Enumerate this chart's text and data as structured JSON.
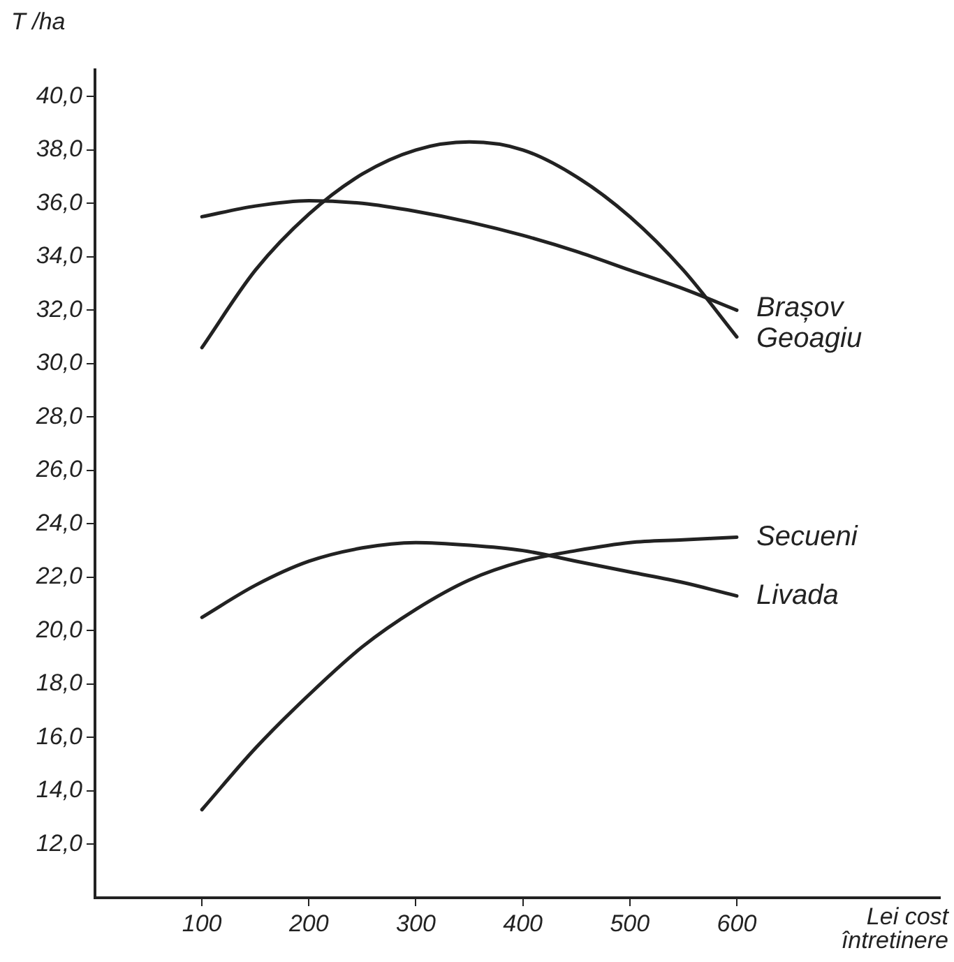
{
  "chart_data": {
    "type": "line",
    "xlabel": "Lei cost întretinere",
    "ylabel": "T /ha",
    "x": [
      100,
      150,
      200,
      250,
      300,
      350,
      400,
      450,
      500,
      550,
      600
    ],
    "series": [
      {
        "name": "Brașov",
        "color": "#222222",
        "values": [
          35.5,
          35.9,
          36.1,
          36.0,
          35.7,
          35.3,
          34.8,
          34.2,
          33.5,
          32.8,
          32.0
        ]
      },
      {
        "name": "Geoagiu",
        "color": "#222222",
        "values": [
          30.6,
          33.5,
          35.6,
          37.1,
          38.0,
          38.3,
          38.0,
          37.0,
          35.5,
          33.5,
          31.0
        ]
      },
      {
        "name": "Secueni",
        "color": "#222222",
        "values": [
          13.3,
          15.6,
          17.6,
          19.4,
          20.8,
          21.9,
          22.6,
          23.0,
          23.3,
          23.4,
          23.5
        ]
      },
      {
        "name": "Livada",
        "color": "#222222",
        "values": [
          20.5,
          21.7,
          22.6,
          23.1,
          23.3,
          23.2,
          23.0,
          22.6,
          22.2,
          21.8,
          21.3
        ]
      }
    ],
    "xlim": [
      0,
      790
    ],
    "xticks": [
      100,
      200,
      300,
      400,
      500,
      600
    ],
    "ylim": [
      10,
      41
    ],
    "yticks": [
      {
        "value": 12,
        "label": "12,0"
      },
      {
        "value": 14,
        "label": "14,0"
      },
      {
        "value": 16,
        "label": "16,0"
      },
      {
        "value": 18,
        "label": "18,0"
      },
      {
        "value": 20,
        "label": "20,0"
      },
      {
        "value": 22,
        "label": "22,0"
      },
      {
        "value": 24,
        "label": "24,0"
      },
      {
        "value": 26,
        "label": "26,0"
      },
      {
        "value": 28,
        "label": "28,0"
      },
      {
        "value": 30,
        "label": "30,0"
      },
      {
        "value": 32,
        "label": "32,0"
      },
      {
        "value": 34,
        "label": "34,0"
      },
      {
        "value": 36,
        "label": "36,0"
      },
      {
        "value": 38,
        "label": "38,0"
      },
      {
        "value": 40,
        "label": "40,0"
      }
    ],
    "grid": false,
    "legend": false,
    "marker": "none",
    "line_style": "solid"
  }
}
